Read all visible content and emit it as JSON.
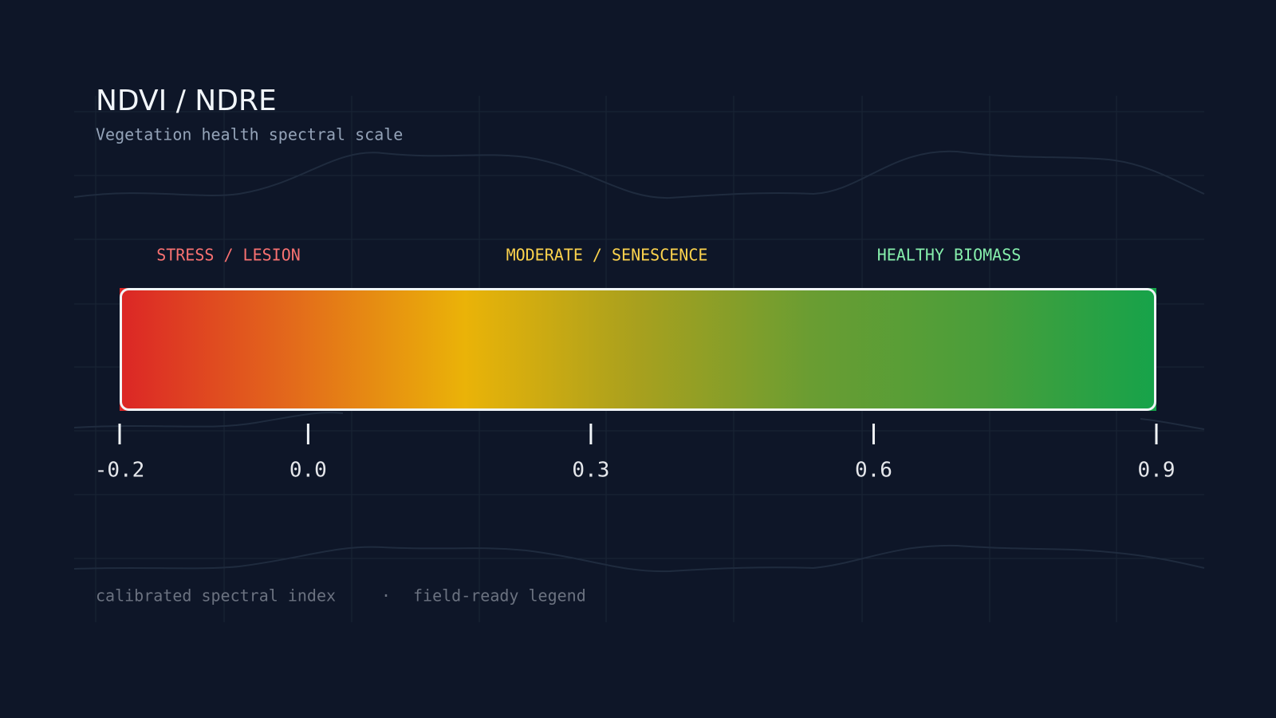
{
  "chart_data": {
    "type": "colorbar",
    "title": "NDVI / NDRE",
    "subtitle": "Vegetation health spectral scale",
    "bands": [
      {
        "label": "STRESS / LESION",
        "color": "#f87171"
      },
      {
        "label": "MODERATE / SENESCENCE",
        "color": "#fcd34d"
      },
      {
        "label": "HEALTHY BIOMASS",
        "color": "#86efac"
      }
    ],
    "colors": [
      "#dc2626",
      "#e36a1b",
      "#eab308",
      "#a8a01e",
      "#6a9d32",
      "#4a9e3a",
      "#16a34a"
    ],
    "xlim": [
      -0.2,
      0.9
    ],
    "xticks": [
      -0.2,
      {
        "value": 0,
        "label": "0.0"
      },
      0.3,
      0.6,
      0.9
    ],
    "footer": [
      "calibrated spectral index",
      "field-ready legend"
    ]
  }
}
